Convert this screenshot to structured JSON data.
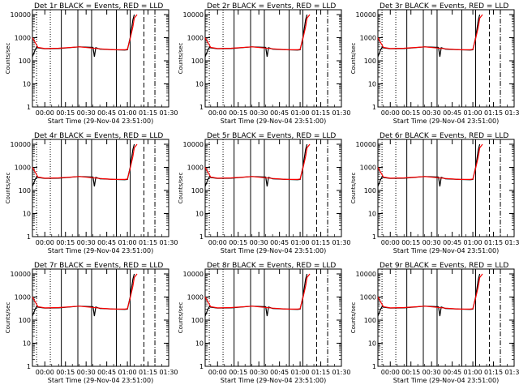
{
  "colors": {
    "background": "#ffffff",
    "axes": "#000000",
    "events": "#000000",
    "lld": "#ff0000"
  },
  "xlabel": "Start Time (29-Nov-04 23:51:00)",
  "ylabel": "Counts/sec",
  "chart_data": [
    {
      "type": "line",
      "title": "Det 1r BLACK = Events, RED = LLD",
      "xlabel": "Start Time (29-Nov-04 23:51:00)",
      "ylabel": "Counts/sec",
      "x_tick_labels": [
        "00:00",
        "00:15",
        "00:30",
        "00:45",
        "01:00",
        "01:15",
        "01:30"
      ],
      "y_tick_labels": [
        "1",
        "10",
        "100",
        "1000",
        "10000"
      ],
      "ylog": true,
      "series": [
        {
          "name": "Events",
          "color": "#000000",
          "x": [
            "23:51",
            "23:53",
            "23:54",
            "23:55",
            "00:00",
            "00:10",
            "00:25",
            "00:35",
            "00:36",
            "00:37",
            "00:40",
            "00:50",
            "00:58",
            "01:00",
            "01:02",
            "01:04",
            "01:05"
          ],
          "y": [
            150,
            300,
            380,
            360,
            330,
            340,
            400,
            380,
            150,
            370,
            320,
            300,
            290,
            300,
            1000,
            6000,
            10000
          ]
        },
        {
          "name": "LLD",
          "color": "#ff0000",
          "x": [
            "23:51",
            "23:55",
            "00:00",
            "00:10",
            "00:25",
            "00:40",
            "00:50",
            "00:58",
            "01:00",
            "01:02",
            "01:04",
            "01:05",
            "01:07"
          ],
          "y": [
            1000,
            380,
            340,
            350,
            400,
            330,
            300,
            300,
            310,
            900,
            3000,
            7000,
            10000
          ]
        }
      ]
    },
    {
      "type": "line",
      "title": "Det 2r BLACK = Events, RED = LLD",
      "xlabel": "Start Time (29-Nov-04 23:51:00)",
      "ylabel": "Counts/sec",
      "x_tick_labels": [
        "00:00",
        "00:15",
        "00:30",
        "00:45",
        "01:00",
        "01:15",
        "01:30"
      ],
      "y_tick_labels": [
        "1",
        "10",
        "100",
        "1000",
        "10000"
      ],
      "ylog": true,
      "series": [
        {
          "name": "Events",
          "color": "#000000",
          "x": [
            "23:51",
            "23:53",
            "23:54",
            "23:55",
            "00:00",
            "00:10",
            "00:25",
            "00:35",
            "00:36",
            "00:37",
            "00:40",
            "00:50",
            "00:58",
            "01:00",
            "01:02",
            "01:04",
            "01:05"
          ],
          "y": [
            150,
            300,
            380,
            360,
            330,
            340,
            400,
            380,
            150,
            370,
            320,
            300,
            290,
            300,
            1000,
            6000,
            10000
          ]
        },
        {
          "name": "LLD",
          "color": "#ff0000",
          "x": [
            "23:51",
            "23:55",
            "00:00",
            "00:10",
            "00:25",
            "00:40",
            "00:50",
            "00:58",
            "01:00",
            "01:02",
            "01:04",
            "01:05",
            "01:07"
          ],
          "y": [
            1000,
            380,
            340,
            350,
            400,
            330,
            300,
            300,
            310,
            900,
            3000,
            7000,
            10000
          ]
        }
      ]
    },
    {
      "type": "line",
      "title": "Det 3r BLACK = Events, RED = LLD",
      "xlabel": "Start Time (29-Nov-04 23:51:00)",
      "ylabel": "Counts/sec",
      "x_tick_labels": [
        "00:00",
        "00:15",
        "00:30",
        "00:45",
        "01:00",
        "01:15",
        "01:30"
      ],
      "y_tick_labels": [
        "1",
        "10",
        "100",
        "1000",
        "10000"
      ],
      "ylog": true,
      "series": [
        {
          "name": "Events",
          "color": "#000000",
          "x": [
            "23:51",
            "23:53",
            "23:54",
            "23:55",
            "00:00",
            "00:10",
            "00:25",
            "00:35",
            "00:36",
            "00:37",
            "00:40",
            "00:50",
            "00:58",
            "01:00",
            "01:02",
            "01:04",
            "01:05"
          ],
          "y": [
            150,
            300,
            380,
            360,
            330,
            340,
            400,
            380,
            150,
            370,
            320,
            300,
            290,
            300,
            1000,
            6000,
            10000
          ]
        },
        {
          "name": "LLD",
          "color": "#ff0000",
          "x": [
            "23:51",
            "23:55",
            "00:00",
            "00:10",
            "00:25",
            "00:40",
            "00:50",
            "00:58",
            "01:00",
            "01:02",
            "01:04",
            "01:05",
            "01:07"
          ],
          "y": [
            1000,
            380,
            340,
            350,
            400,
            330,
            300,
            300,
            310,
            900,
            3000,
            7000,
            10000
          ]
        }
      ]
    },
    {
      "type": "line",
      "title": "Det 4r BLACK = Events, RED = LLD",
      "xlabel": "Start Time (29-Nov-04 23:51:00)",
      "ylabel": "Counts/sec",
      "x_tick_labels": [
        "00:00",
        "00:15",
        "00:30",
        "00:45",
        "01:00",
        "01:15",
        "01:30"
      ],
      "y_tick_labels": [
        "1",
        "10",
        "100",
        "1000",
        "10000"
      ],
      "ylog": true,
      "series": [
        {
          "name": "Events",
          "color": "#000000",
          "x": [
            "23:51",
            "23:53",
            "23:54",
            "23:55",
            "00:00",
            "00:10",
            "00:25",
            "00:35",
            "00:36",
            "00:37",
            "00:40",
            "00:50",
            "00:58",
            "01:00",
            "01:02",
            "01:04",
            "01:05"
          ],
          "y": [
            150,
            300,
            380,
            360,
            330,
            340,
            400,
            380,
            150,
            370,
            320,
            300,
            290,
            300,
            1000,
            6000,
            10000
          ]
        },
        {
          "name": "LLD",
          "color": "#ff0000",
          "x": [
            "23:51",
            "23:55",
            "00:00",
            "00:10",
            "00:25",
            "00:40",
            "00:50",
            "00:58",
            "01:00",
            "01:02",
            "01:04",
            "01:05",
            "01:07"
          ],
          "y": [
            1000,
            380,
            340,
            350,
            400,
            330,
            300,
            300,
            310,
            900,
            3000,
            7000,
            10000
          ]
        }
      ]
    },
    {
      "type": "line",
      "title": "Det 5r BLACK = Events, RED = LLD",
      "xlabel": "Start Time (29-Nov-04 23:51:00)",
      "ylabel": "Counts/sec",
      "x_tick_labels": [
        "00:00",
        "00:15",
        "00:30",
        "00:45",
        "01:00",
        "01:15",
        "01:30"
      ],
      "y_tick_labels": [
        "1",
        "10",
        "100",
        "1000",
        "10000"
      ],
      "ylog": true,
      "series": [
        {
          "name": "Events",
          "color": "#000000",
          "x": [
            "23:51",
            "23:53",
            "23:54",
            "23:55",
            "00:00",
            "00:10",
            "00:25",
            "00:35",
            "00:36",
            "00:37",
            "00:40",
            "00:50",
            "00:58",
            "01:00",
            "01:02",
            "01:04",
            "01:05"
          ],
          "y": [
            150,
            300,
            380,
            360,
            330,
            340,
            400,
            380,
            150,
            370,
            320,
            300,
            290,
            300,
            1000,
            6000,
            10000
          ]
        },
        {
          "name": "LLD",
          "color": "#ff0000",
          "x": [
            "23:51",
            "23:55",
            "00:00",
            "00:10",
            "00:25",
            "00:40",
            "00:50",
            "00:58",
            "01:00",
            "01:02",
            "01:04",
            "01:05",
            "01:07"
          ],
          "y": [
            1000,
            380,
            340,
            350,
            400,
            330,
            300,
            300,
            310,
            900,
            3000,
            7000,
            10000
          ]
        }
      ]
    },
    {
      "type": "line",
      "title": "Det 6r BLACK = Events, RED = LLD",
      "xlabel": "Start Time (29-Nov-04 23:51:00)",
      "ylabel": "Counts/sec",
      "x_tick_labels": [
        "00:00",
        "00:15",
        "00:30",
        "00:45",
        "01:00",
        "01:15",
        "01:30"
      ],
      "y_tick_labels": [
        "1",
        "10",
        "100",
        "1000",
        "10000"
      ],
      "ylog": true,
      "series": [
        {
          "name": "Events",
          "color": "#000000",
          "x": [
            "23:51",
            "23:53",
            "23:54",
            "23:55",
            "00:00",
            "00:10",
            "00:25",
            "00:35",
            "00:36",
            "00:37",
            "00:40",
            "00:50",
            "00:58",
            "01:00",
            "01:02",
            "01:04",
            "01:05"
          ],
          "y": [
            150,
            300,
            380,
            360,
            330,
            340,
            400,
            380,
            150,
            370,
            320,
            300,
            290,
            300,
            1000,
            6000,
            10000
          ]
        },
        {
          "name": "LLD",
          "color": "#ff0000",
          "x": [
            "23:51",
            "23:55",
            "00:00",
            "00:10",
            "00:25",
            "00:40",
            "00:50",
            "00:58",
            "01:00",
            "01:02",
            "01:04",
            "01:05",
            "01:07"
          ],
          "y": [
            1000,
            380,
            340,
            350,
            400,
            330,
            300,
            300,
            310,
            900,
            3000,
            7000,
            10000
          ]
        }
      ]
    },
    {
      "type": "line",
      "title": "Det 7r BLACK = Events, RED = LLD",
      "xlabel": "Start Time (29-Nov-04 23:51:00)",
      "ylabel": "Counts/sec",
      "x_tick_labels": [
        "00:00",
        "00:15",
        "00:30",
        "00:45",
        "01:00",
        "01:15",
        "01:30"
      ],
      "y_tick_labels": [
        "1",
        "10",
        "100",
        "1000",
        "10000"
      ],
      "ylog": true,
      "series": [
        {
          "name": "Events",
          "color": "#000000",
          "x": [
            "23:51",
            "23:53",
            "23:54",
            "23:55",
            "00:00",
            "00:10",
            "00:25",
            "00:35",
            "00:36",
            "00:37",
            "00:40",
            "00:50",
            "00:58",
            "01:00",
            "01:02",
            "01:04",
            "01:05"
          ],
          "y": [
            150,
            300,
            380,
            360,
            330,
            340,
            400,
            380,
            150,
            370,
            320,
            300,
            290,
            300,
            1000,
            6000,
            10000
          ]
        },
        {
          "name": "LLD",
          "color": "#ff0000",
          "x": [
            "23:51",
            "23:55",
            "00:00",
            "00:10",
            "00:25",
            "00:40",
            "00:50",
            "00:58",
            "01:00",
            "01:02",
            "01:04",
            "01:05",
            "01:07"
          ],
          "y": [
            1000,
            380,
            340,
            350,
            400,
            330,
            300,
            300,
            310,
            900,
            3000,
            7000,
            10000
          ]
        }
      ]
    },
    {
      "type": "line",
      "title": "Det 8r BLACK = Events, RED = LLD",
      "xlabel": "Start Time (29-Nov-04 23:51:00)",
      "ylabel": "Counts/sec",
      "x_tick_labels": [
        "00:00",
        "00:15",
        "00:30",
        "00:45",
        "01:00",
        "01:15",
        "01:30"
      ],
      "y_tick_labels": [
        "1",
        "10",
        "100",
        "1000",
        "10000"
      ],
      "ylog": true,
      "series": [
        {
          "name": "Events",
          "color": "#000000",
          "x": [
            "23:51",
            "23:53",
            "23:54",
            "23:55",
            "00:00",
            "00:10",
            "00:25",
            "00:35",
            "00:36",
            "00:37",
            "00:40",
            "00:50",
            "00:58",
            "01:00",
            "01:02",
            "01:04",
            "01:05"
          ],
          "y": [
            150,
            300,
            380,
            360,
            330,
            340,
            400,
            380,
            150,
            370,
            320,
            300,
            290,
            300,
            1000,
            6000,
            10000
          ]
        },
        {
          "name": "LLD",
          "color": "#ff0000",
          "x": [
            "23:51",
            "23:55",
            "00:00",
            "00:10",
            "00:25",
            "00:40",
            "00:50",
            "00:58",
            "01:00",
            "01:02",
            "01:04",
            "01:05",
            "01:07"
          ],
          "y": [
            1000,
            380,
            340,
            350,
            400,
            330,
            300,
            300,
            310,
            900,
            3000,
            7000,
            10000
          ]
        }
      ]
    },
    {
      "type": "line",
      "title": "Det 9r BLACK = Events, RED = LLD",
      "xlabel": "Start Time (29-Nov-04 23:51:00)",
      "ylabel": "Counts/sec",
      "x_tick_labels": [
        "00:00",
        "00:15",
        "00:30",
        "00:45",
        "01:00",
        "01:15",
        "01:30"
      ],
      "y_tick_labels": [
        "1",
        "10",
        "100",
        "1000",
        "10000"
      ],
      "ylog": true,
      "series": [
        {
          "name": "Events",
          "color": "#000000",
          "x": [
            "23:51",
            "23:53",
            "23:54",
            "23:55",
            "00:00",
            "00:10",
            "00:25",
            "00:35",
            "00:36",
            "00:37",
            "00:40",
            "00:50",
            "00:58",
            "01:00",
            "01:02",
            "01:04",
            "01:05"
          ],
          "y": [
            150,
            300,
            380,
            360,
            330,
            340,
            400,
            380,
            150,
            370,
            320,
            300,
            290,
            300,
            1000,
            6000,
            10000
          ]
        },
        {
          "name": "LLD",
          "color": "#ff0000",
          "x": [
            "23:51",
            "23:55",
            "00:00",
            "00:10",
            "00:25",
            "00:40",
            "00:50",
            "00:58",
            "01:00",
            "01:02",
            "01:04",
            "01:05",
            "01:07"
          ],
          "y": [
            1000,
            380,
            340,
            350,
            400,
            330,
            300,
            300,
            310,
            900,
            3000,
            7000,
            10000
          ]
        }
      ]
    }
  ]
}
